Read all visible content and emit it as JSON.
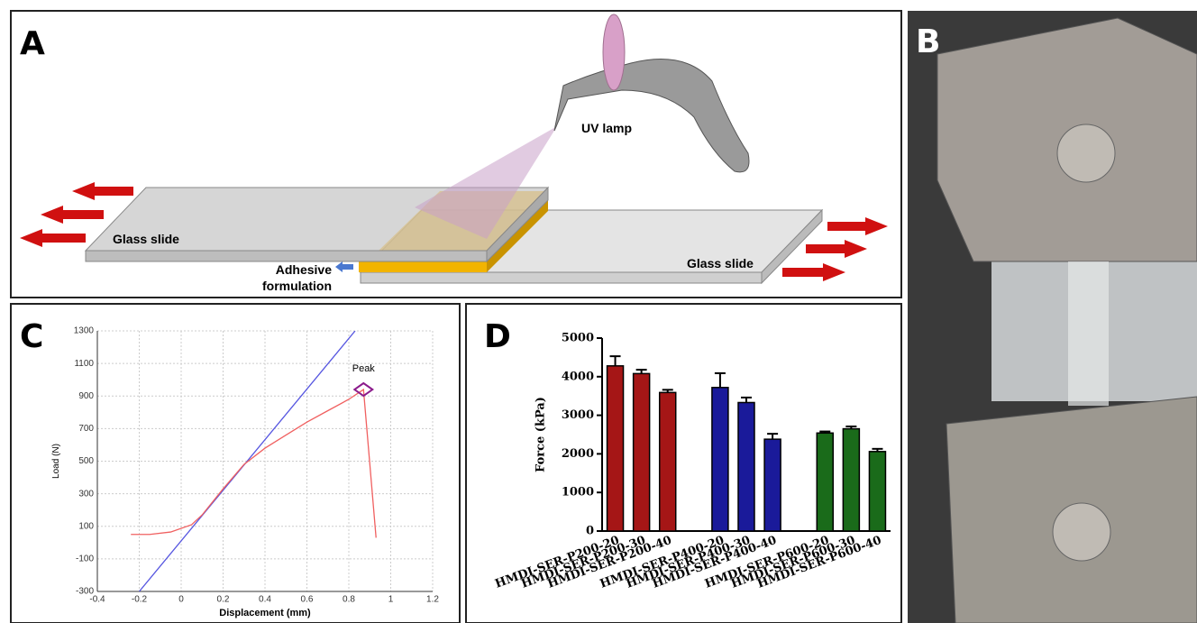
{
  "panels": {
    "a": {
      "label": "A",
      "lamp": "UV lamp",
      "slide_top": "Glass slide",
      "slide_bottom": "Glass slide",
      "adhesive": [
        "Adhesive",
        "formulation"
      ]
    },
    "b": {
      "label": "B"
    },
    "c": {
      "label": "C"
    },
    "d": {
      "label": "D"
    }
  },
  "chart_data": [
    {
      "type": "line",
      "xlabel": "Displacement (mm)",
      "ylabel": "Load (N)",
      "xlim": [
        -0.4,
        1.2
      ],
      "xticks": [
        -0.4,
        -0.2,
        0,
        0.2,
        0.4,
        0.6,
        0.8,
        1,
        1.2
      ],
      "ylim": [
        -300,
        1300
      ],
      "yticks": [
        -300,
        -100,
        100,
        300,
        500,
        700,
        900,
        1100,
        1300
      ],
      "grid": true,
      "series": [
        {
          "color": "#5555e0",
          "x": [
            -0.2,
            0.83
          ],
          "values": [
            -300,
            1300
          ]
        },
        {
          "color": "#f06060",
          "x": [
            -0.24,
            -0.15,
            -0.05,
            0.05,
            0.1,
            0.2,
            0.3,
            0.4,
            0.5,
            0.6,
            0.7,
            0.8,
            0.87,
            0.93
          ],
          "values": [
            50,
            50,
            65,
            110,
            170,
            330,
            480,
            580,
            660,
            740,
            810,
            880,
            940,
            30
          ]
        }
      ],
      "annotations": [
        {
          "text": "Peak",
          "x": 0.87,
          "y": 940,
          "color": "#8b1a8b"
        }
      ]
    },
    {
      "type": "bar",
      "ylabel": "Force (kPa)",
      "ylim": [
        0,
        5000
      ],
      "yticks": [
        0,
        1000,
        2000,
        3000,
        4000,
        5000
      ],
      "categories": [
        "HMDI-SER-P200-20",
        "HMDI-SER-P200-30",
        "HMDI-SER-P200-40",
        null,
        "HMDI-SER-P400-20",
        "HMDI-SER-P400-30",
        "HMDI-SER-P400-40",
        null,
        "HMDI-SER-P600-20",
        "HMDI-SER-P600-30",
        "HMDI-SER-P600-40"
      ],
      "values": [
        4280,
        4080,
        3590,
        null,
        3720,
        3330,
        2380,
        null,
        2540,
        2650,
        2060
      ],
      "errors": [
        250,
        100,
        70,
        null,
        370,
        130,
        140,
        null,
        40,
        60,
        70
      ],
      "colors": [
        "#a51616",
        "#a51616",
        "#a51616",
        null,
        "#1a1a9a",
        "#1a1a9a",
        "#1a1a9a",
        null,
        "#1a6b1a",
        "#1a6b1a",
        "#1a6b1a"
      ]
    }
  ]
}
